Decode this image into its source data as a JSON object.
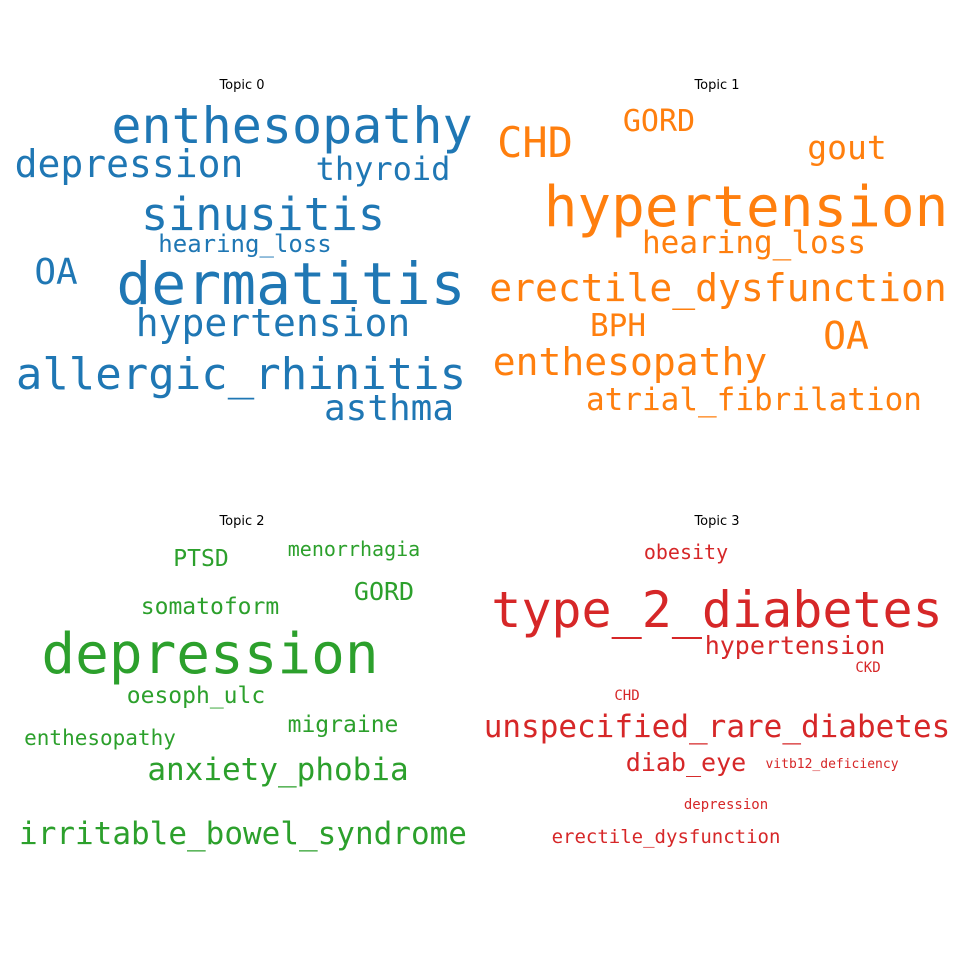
{
  "chart_data": [
    {
      "type": "wordcloud",
      "title": "Topic 0",
      "color": "#1f77b4",
      "words": [
        {
          "text": "enthesopathy",
          "weight": 0.95
        },
        {
          "text": "depression",
          "weight": 0.73
        },
        {
          "text": "thyroid",
          "weight": 0.6
        },
        {
          "text": "sinusitis",
          "weight": 0.87
        },
        {
          "text": "hearing_loss",
          "weight": 0.49
        },
        {
          "text": "OA",
          "weight": 0.72
        },
        {
          "text": "dermatitis",
          "weight": 1.0
        },
        {
          "text": "hypertension",
          "weight": 0.78
        },
        {
          "text": "allergic_rhinitis",
          "weight": 0.9
        },
        {
          "text": "asthma",
          "weight": 0.74
        }
      ]
    },
    {
      "type": "wordcloud",
      "title": "Topic 1",
      "color": "#ff7f0e",
      "words": [
        {
          "text": "CHD",
          "weight": 0.8
        },
        {
          "text": "GORD",
          "weight": 0.6
        },
        {
          "text": "gout",
          "weight": 0.67
        },
        {
          "text": "hypertension",
          "weight": 1.0
        },
        {
          "text": "hearing_loss",
          "weight": 0.62
        },
        {
          "text": "erectile_dysfunction",
          "weight": 0.76
        },
        {
          "text": "BPH",
          "weight": 0.66
        },
        {
          "text": "OA",
          "weight": 0.76
        },
        {
          "text": "enthesopathy",
          "weight": 0.75
        },
        {
          "text": "atrial_fibrilation",
          "weight": 0.6
        }
      ]
    },
    {
      "type": "wordcloud",
      "title": "Topic 2",
      "color": "#2ca02c",
      "words": [
        {
          "text": "menorrhagia",
          "weight": 0.35
        },
        {
          "text": "PTSD",
          "weight": 0.41
        },
        {
          "text": "GORD",
          "weight": 0.45
        },
        {
          "text": "somatoform",
          "weight": 0.41
        },
        {
          "text": "depression",
          "weight": 1.0
        },
        {
          "text": "oesoph_ulc",
          "weight": 0.41
        },
        {
          "text": "migraine",
          "weight": 0.41
        },
        {
          "text": "enthesopathy",
          "weight": 0.38
        },
        {
          "text": "anxiety_phobia",
          "weight": 0.55
        },
        {
          "text": "irritable_bowel_syndrome",
          "weight": 0.56
        }
      ]
    },
    {
      "type": "wordcloud",
      "title": "Topic 3",
      "color": "#d62728",
      "words": [
        {
          "text": "obesity",
          "weight": 0.35
        },
        {
          "text": "type_2_diabetes",
          "weight": 1.0
        },
        {
          "text": "hypertension",
          "weight": 0.45
        },
        {
          "text": "CKD",
          "weight": 0.25
        },
        {
          "text": "CHD",
          "weight": 0.25
        },
        {
          "text": "unspecified_rare_diabetes",
          "weight": 0.55
        },
        {
          "text": "diab_eye",
          "weight": 0.5
        },
        {
          "text": "vitb12_deficiency",
          "weight": 0.23
        },
        {
          "text": "depression",
          "weight": 0.23
        },
        {
          "text": "erectile_dysfunction",
          "weight": 0.33
        }
      ]
    }
  ]
}
